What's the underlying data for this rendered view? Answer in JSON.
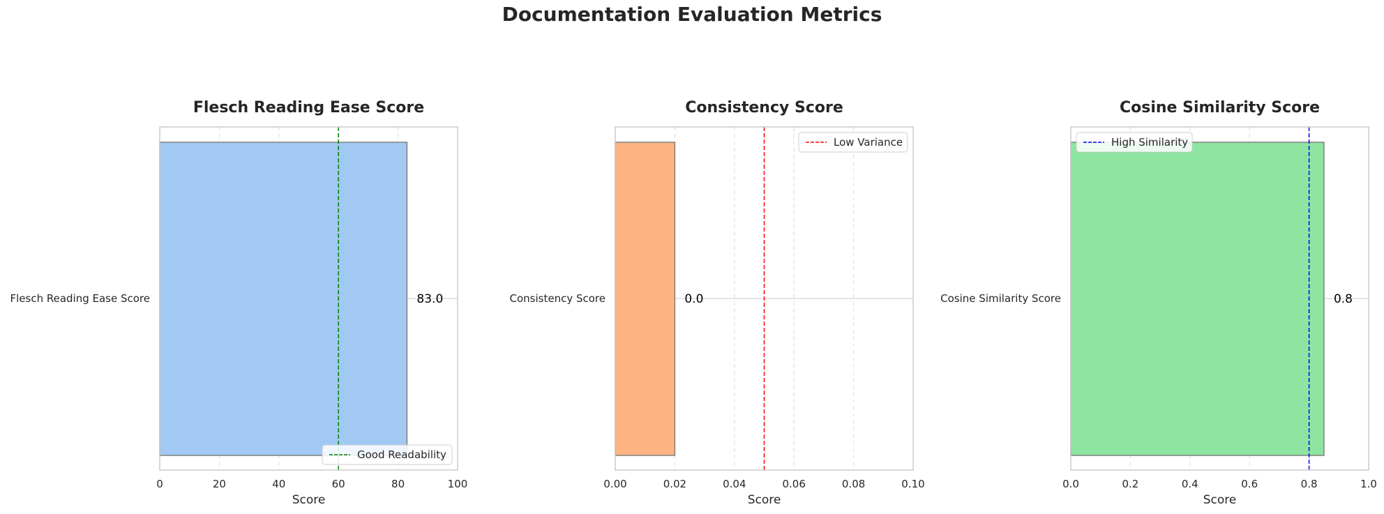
{
  "figure": {
    "title": "Documentation Evaluation Metrics"
  },
  "chart_data": [
    {
      "type": "bar",
      "orientation": "horizontal",
      "title": "Flesch Reading Ease Score",
      "categories": [
        "Flesch Reading Ease Score"
      ],
      "values": [
        83.0
      ],
      "value_labels": [
        "83.0"
      ],
      "xlabel": "Score",
      "ylabel": "",
      "xlim": [
        0,
        100
      ],
      "xticks": [
        0,
        20,
        40,
        60,
        80,
        100
      ],
      "xtick_labels": [
        "0",
        "20",
        "40",
        "60",
        "80",
        "100"
      ],
      "bar_color": "#a1c9f4",
      "reference_line": {
        "value": 60,
        "label": "Good Readability",
        "color": "#008000"
      },
      "legend_position": "lower-right",
      "grid": true
    },
    {
      "type": "bar",
      "orientation": "horizontal",
      "title": "Consistency Score",
      "categories": [
        "Consistency Score"
      ],
      "values": [
        0.02
      ],
      "value_labels": [
        "0.0"
      ],
      "xlabel": "Score",
      "ylabel": "",
      "xlim": [
        0,
        0.1
      ],
      "xticks": [
        0,
        0.02,
        0.04,
        0.06,
        0.08,
        0.1
      ],
      "xtick_labels": [
        "0.00",
        "0.02",
        "0.04",
        "0.06",
        "0.08",
        "0.10"
      ],
      "bar_color": "#ffb482",
      "reference_line": {
        "value": 0.05,
        "label": "Low Variance",
        "color": "#ff0000"
      },
      "legend_position": "upper-right",
      "grid": true
    },
    {
      "type": "bar",
      "orientation": "horizontal",
      "title": "Cosine Similarity Score",
      "categories": [
        "Cosine Similarity Score"
      ],
      "values": [
        0.85
      ],
      "value_labels": [
        "0.8"
      ],
      "xlabel": "Score",
      "ylabel": "",
      "xlim": [
        0,
        1.0
      ],
      "xticks": [
        0,
        0.2,
        0.4,
        0.6,
        0.8,
        1.0
      ],
      "xtick_labels": [
        "0.0",
        "0.2",
        "0.4",
        "0.6",
        "0.8",
        "1.0"
      ],
      "bar_color": "#8de5a1",
      "reference_line": {
        "value": 0.8,
        "label": "High Similarity",
        "color": "#0000ff"
      },
      "legend_position": "upper-left",
      "grid": true
    }
  ]
}
